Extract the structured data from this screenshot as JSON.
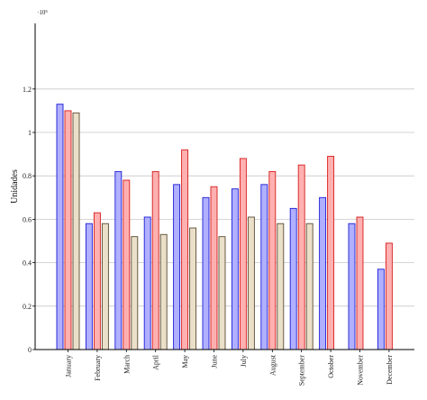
{
  "chart_data": {
    "type": "bar",
    "ylabel": "Unidades",
    "y_multiplier_label": "·10⁵",
    "ylim": [
      0,
      1.5
    ],
    "yticks": [
      0,
      0.2,
      0.4,
      0.6,
      0.8,
      1,
      1.2
    ],
    "grid": "horizontal",
    "categories": [
      "January",
      "February",
      "March",
      "April",
      "May",
      "June",
      "July",
      "August",
      "September",
      "October",
      "November",
      "December"
    ],
    "series": [
      {
        "color": "#b0b0ff",
        "stroke": "#1c1cd6",
        "values": [
          1.13,
          0.58,
          0.82,
          0.61,
          0.76,
          0.7,
          0.74,
          0.76,
          0.65,
          0.7,
          0.58,
          0.37
        ]
      },
      {
        "color": "#ffb0b0",
        "stroke": "#d61c1c",
        "values": [
          1.1,
          0.63,
          0.78,
          0.82,
          0.92,
          0.75,
          0.88,
          0.82,
          0.85,
          0.89,
          0.61,
          0.49
        ]
      },
      {
        "color": "#eadfc8",
        "stroke": "#5a4a32",
        "values": [
          1.09,
          0.58,
          0.52,
          0.53,
          0.56,
          0.52,
          0.61,
          0.58,
          0.58,
          null,
          null,
          null
        ]
      }
    ]
  }
}
